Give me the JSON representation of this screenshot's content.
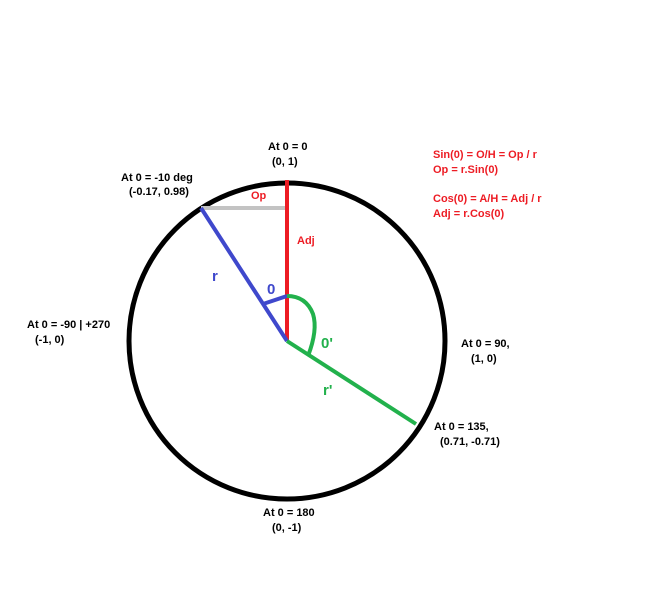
{
  "colors": {
    "circle": "#000000",
    "adjacent": "#ed1c24",
    "radius": "#3f48cc",
    "radius_prime": "#22b14c",
    "opposite": "#c3c3c3",
    "formula": "#ed1c24"
  },
  "points": {
    "top": {
      "line1": "At 0 = 0",
      "line2": "(0, 1)"
    },
    "minus10": {
      "line1": "At 0 = -10 deg",
      "line2": "(-0.17, 0.98)"
    },
    "left": {
      "line1": "At 0 = -90 | +270",
      "line2": "(-1, 0)"
    },
    "right": {
      "line1": "At 0 = 90,",
      "line2": "(1, 0)"
    },
    "p135": {
      "line1": "At 0 = 135,",
      "line2": "(0.71, -0.71)"
    },
    "bottom": {
      "line1": "At 0 = 180",
      "line2": "(0, -1)"
    }
  },
  "formulas": {
    "sin": "Sin(0) = O/H = Op / r",
    "op": "Op = r.Sin(0)",
    "cos": "Cos(0) = A/H = Adj / r",
    "adj": "Adj = r.Cos(0)"
  },
  "segment_labels": {
    "op": "Op",
    "adj": "Adj",
    "r": "r",
    "theta": "0",
    "r_prime": "r'",
    "theta_prime": "0'"
  }
}
